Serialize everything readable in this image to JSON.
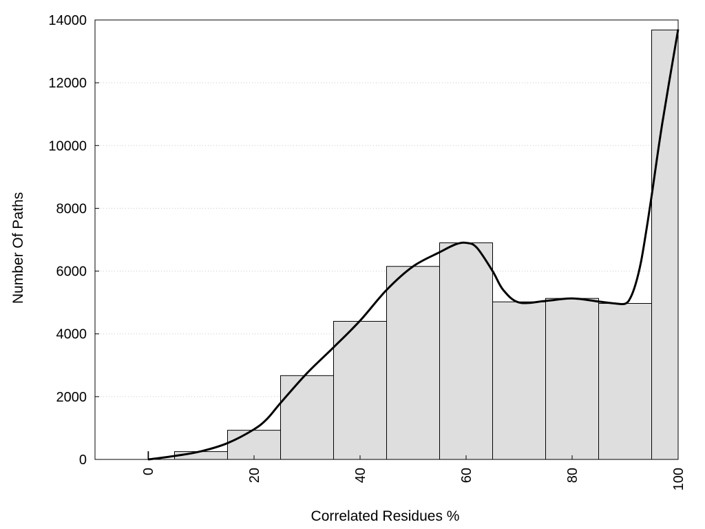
{
  "chart_data": {
    "type": "bar",
    "title": "",
    "xlabel": "Correlated Residues %",
    "ylabel": "Number Of Paths",
    "xlim": [
      -10,
      100
    ],
    "ylim": [
      0,
      14000
    ],
    "x_ticks": [
      0,
      20,
      40,
      60,
      80,
      100
    ],
    "y_ticks": [
      0,
      2000,
      4000,
      6000,
      8000,
      10000,
      12000,
      14000
    ],
    "grid": "horizontal dotted",
    "bars": [
      {
        "x0": 0,
        "x1": 0.1,
        "value": 250
      },
      {
        "x0": 5,
        "x1": 15,
        "value": 250
      },
      {
        "x0": 15,
        "x1": 25,
        "value": 930
      },
      {
        "x0": 25,
        "x1": 35,
        "value": 2670
      },
      {
        "x0": 35,
        "x1": 45,
        "value": 4400
      },
      {
        "x0": 45,
        "x1": 55,
        "value": 6150
      },
      {
        "x0": 55,
        "x1": 65,
        "value": 6900
      },
      {
        "x0": 65,
        "x1": 75,
        "value": 5020
      },
      {
        "x0": 75,
        "x1": 85,
        "value": 5130
      },
      {
        "x0": 85,
        "x1": 95,
        "value": 4970
      },
      {
        "x0": 95,
        "x1": 100,
        "value": 13680
      }
    ],
    "smooth_curve": [
      [
        0,
        0
      ],
      [
        5,
        110
      ],
      [
        10,
        260
      ],
      [
        15,
        520
      ],
      [
        20,
        960
      ],
      [
        22.5,
        1300
      ],
      [
        25,
        1800
      ],
      [
        30,
        2750
      ],
      [
        35,
        3570
      ],
      [
        40,
        4420
      ],
      [
        45,
        5400
      ],
      [
        50,
        6150
      ],
      [
        55,
        6600
      ],
      [
        58,
        6850
      ],
      [
        60,
        6900
      ],
      [
        62,
        6750
      ],
      [
        65,
        6000
      ],
      [
        67,
        5400
      ],
      [
        70,
        5000
      ],
      [
        75,
        5050
      ],
      [
        80,
        5130
      ],
      [
        85,
        5030
      ],
      [
        88,
        4970
      ],
      [
        90,
        4960
      ],
      [
        91,
        5150
      ],
      [
        92,
        5600
      ],
      [
        93,
        6300
      ],
      [
        94,
        7300
      ],
      [
        95,
        8400
      ],
      [
        97,
        10700
      ],
      [
        100,
        13700
      ]
    ],
    "colors": {
      "bar_fill": "#dedede",
      "bar_stroke": "#000000",
      "curve": "#000000",
      "grid": "#c8c8c8"
    }
  }
}
